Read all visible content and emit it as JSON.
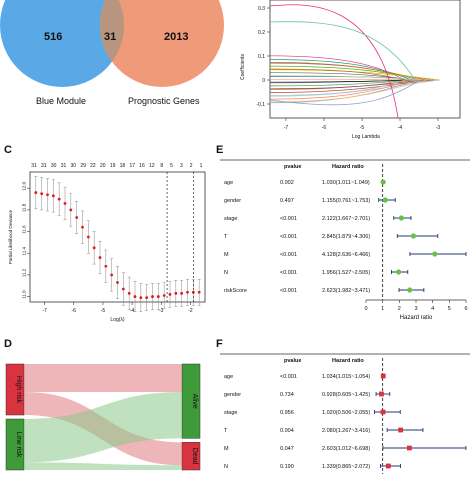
{
  "panels": {
    "C": "C",
    "D": "D",
    "E": "E",
    "F": "F"
  },
  "venn": {
    "left_count": "516",
    "overlap_count": "31",
    "right_count": "2013",
    "left_label": "Blue Module",
    "right_label": "Prognostic Genes",
    "left_color": "#5aa9e6",
    "right_color": "#ef9a78",
    "overlap_color": "#b8957f"
  },
  "lasso_coef": {
    "ylabel": "Coefficients",
    "xlabel": "Log Lambda",
    "x_ticks": [
      "-7",
      "-6",
      "-5",
      "-4",
      "-3"
    ],
    "y_ticks": [
      "0.3",
      "0.2",
      "0.1",
      "0",
      "-0.1"
    ]
  },
  "chart_data": [
    {
      "type": "line",
      "panel": "C",
      "xlabel": "Log(λ)",
      "ylabel": "Partial Likelihood Deviance",
      "top_ticks": [
        "31",
        "31",
        "30",
        "31",
        "30",
        "29",
        "22",
        "20",
        "19",
        "18",
        "17",
        "16",
        "12",
        "8",
        "5",
        "3",
        "2",
        "1"
      ],
      "x_ticks": [
        "-7",
        "-6",
        "-5",
        "-4",
        "-3",
        "-2"
      ],
      "y_ticks": [
        "12.0",
        "11.8",
        "11.6",
        "11.4",
        "11.2",
        "11.0"
      ],
      "xlim": [
        -7.5,
        -1.5
      ],
      "ylim": [
        10.95,
        12.15
      ],
      "vlines": [
        -2.8,
        -1.9
      ],
      "x": [
        -7.3,
        -7.1,
        -6.9,
        -6.7,
        -6.5,
        -6.3,
        -6.1,
        -5.9,
        -5.7,
        -5.5,
        -5.3,
        -5.1,
        -4.9,
        -4.7,
        -4.5,
        -4.3,
        -4.1,
        -3.9,
        -3.7,
        -3.5,
        -3.3,
        -3.1,
        -2.9,
        -2.7,
        -2.5,
        -2.3,
        -2.1,
        -1.9,
        -1.7
      ],
      "y": [
        11.96,
        11.95,
        11.94,
        11.93,
        11.9,
        11.86,
        11.8,
        11.73,
        11.64,
        11.55,
        11.45,
        11.36,
        11.28,
        11.2,
        11.13,
        11.07,
        11.03,
        11.0,
        10.99,
        10.99,
        11.0,
        11.0,
        11.01,
        11.02,
        11.03,
        11.03,
        11.04,
        11.04,
        11.04
      ],
      "err": [
        0.15,
        0.15,
        0.15,
        0.15,
        0.15,
        0.15,
        0.15,
        0.15,
        0.15,
        0.15,
        0.15,
        0.15,
        0.15,
        0.15,
        0.15,
        0.15,
        0.15,
        0.14,
        0.13,
        0.12,
        0.12,
        0.12,
        0.12,
        0.12,
        0.12,
        0.12,
        0.12,
        0.12,
        0.12
      ]
    },
    {
      "type": "forest",
      "panel": "E",
      "header_pvalue": "pvalue",
      "header_hr": "Hazard ratio",
      "xlabel": "Hazard ratio",
      "x_ticks": [
        "0",
        "1",
        "2",
        "3",
        "4",
        "5",
        "6"
      ],
      "xlim": [
        0,
        6
      ],
      "ref_line": 1,
      "rows": [
        {
          "name": "age",
          "pvalue": "0.002",
          "hr_text": "1.030(1.011~1.049)",
          "hr": 1.03,
          "lo": 1.011,
          "hi": 1.049
        },
        {
          "name": "gender",
          "pvalue": "0.497",
          "hr_text": "1.155(0.761~1.753)",
          "hr": 1.155,
          "lo": 0.761,
          "hi": 1.753
        },
        {
          "name": "stage",
          "pvalue": "<0.001",
          "hr_text": "2.122(1.667~2.701)",
          "hr": 2.122,
          "lo": 1.667,
          "hi": 2.701
        },
        {
          "name": "T",
          "pvalue": "<0.001",
          "hr_text": "2.845(1.879~4.306)",
          "hr": 2.845,
          "lo": 1.879,
          "hi": 4.306
        },
        {
          "name": "M",
          "pvalue": "<0.001",
          "hr_text": "4.128(2.636~6.466)",
          "hr": 4.128,
          "lo": 2.636,
          "hi": 6.466
        },
        {
          "name": "N",
          "pvalue": "<0.001",
          "hr_text": "1.956(1.527~2.505)",
          "hr": 1.956,
          "lo": 1.527,
          "hi": 2.505
        },
        {
          "name": "riskScore",
          "pvalue": "<0.001",
          "hr_text": "2.623(1.982~3.471)",
          "hr": 2.623,
          "lo": 1.982,
          "hi": 3.471
        }
      ],
      "marker_color": "#6abf4b"
    },
    {
      "type": "forest",
      "panel": "F",
      "header_pvalue": "pvalue",
      "header_hr": "Hazard ratio",
      "xlim": [
        0,
        6
      ],
      "ref_line": 1,
      "rows": [
        {
          "name": "age",
          "pvalue": "<0.001",
          "hr_text": "1.034(1.015~1.054)",
          "hr": 1.034,
          "lo": 1.015,
          "hi": 1.054
        },
        {
          "name": "gender",
          "pvalue": "0.734",
          "hr_text": "0.928(0.605~1.425)",
          "hr": 0.928,
          "lo": 0.605,
          "hi": 1.425
        },
        {
          "name": "stage",
          "pvalue": "0.956",
          "hr_text": "1.020(0.506~2.055)",
          "hr": 1.02,
          "lo": 0.506,
          "hi": 2.055
        },
        {
          "name": "T",
          "pvalue": "0.004",
          "hr_text": "2.080(1.267~3.416)",
          "hr": 2.08,
          "lo": 1.267,
          "hi": 3.416
        },
        {
          "name": "M",
          "pvalue": "0.047",
          "hr_text": "2.603(1.012~6.698)",
          "hr": 2.603,
          "lo": 1.012,
          "hi": 6.698
        },
        {
          "name": "N",
          "pvalue": "0.190",
          "hr_text": "1.339(0.865~2.072)",
          "hr": 1.339,
          "lo": 0.865,
          "hi": 2.072
        }
      ],
      "marker_color": "#d9333f"
    },
    {
      "type": "sankey",
      "panel": "D",
      "left_nodes": [
        {
          "label": "High risk",
          "color": "#d9333f",
          "share": 0.5
        },
        {
          "label": "Low risk",
          "color": "#3f9b3a",
          "share": 0.5
        }
      ],
      "right_nodes": [
        {
          "label": "Alive",
          "color": "#3f9b3a",
          "share": 0.72
        },
        {
          "label": "Dead",
          "color": "#d9333f",
          "share": 0.28
        }
      ]
    }
  ]
}
